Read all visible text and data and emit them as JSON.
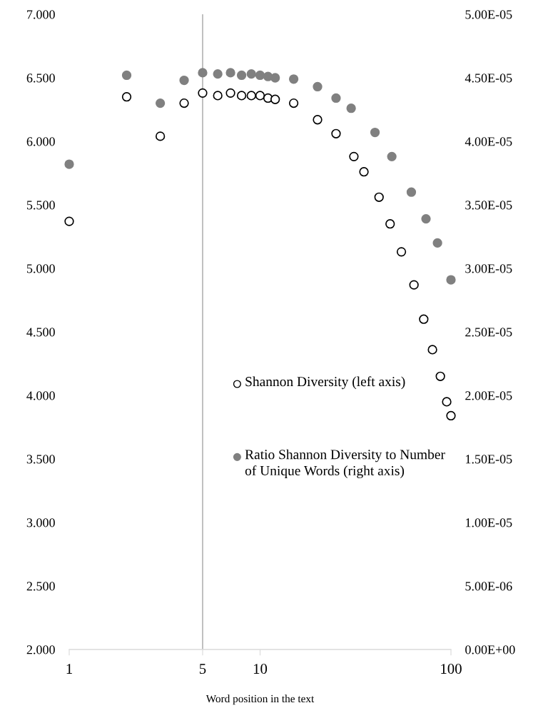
{
  "chart_data": {
    "type": "scatter",
    "xlabel": "Word position in the text",
    "log": "x",
    "grid": false,
    "legend": "bottom right",
    "marker": "circle",
    "xlim": [
      1,
      100
    ],
    "xticks": [
      1,
      5,
      10,
      100
    ],
    "ylim": [
      2.0,
      7.0
    ],
    "yticks": [
      {
        "value": 2.0,
        "label": "2.000"
      },
      {
        "value": 2.5,
        "label": "2.500"
      },
      {
        "value": 3.0,
        "label": "3.000"
      },
      {
        "value": 3.5,
        "label": "3.500"
      },
      {
        "value": 4.0,
        "label": "4.000"
      },
      {
        "value": 4.5,
        "label": "4.500"
      },
      {
        "value": 5.0,
        "label": "5.000"
      },
      {
        "value": 5.5,
        "label": "5.500"
      },
      {
        "value": 6.0,
        "label": "6.000"
      },
      {
        "value": 6.5,
        "label": "6.500"
      },
      {
        "value": 7.0,
        "label": "7.000"
      }
    ],
    "y2lim": [
      0,
      5e-05
    ],
    "y2ticks": [
      {
        "value": 0,
        "label": "0.00E+00"
      },
      {
        "value": 5e-06,
        "label": "5.00E-06"
      },
      {
        "value": 1e-05,
        "label": "1.00E-05"
      },
      {
        "value": 1.5e-05,
        "label": "1.50E-05"
      },
      {
        "value": 2e-05,
        "label": "2.00E-05"
      },
      {
        "value": 2.5e-05,
        "label": "2.50E-05"
      },
      {
        "value": 3e-05,
        "label": "3.00E-05"
      },
      {
        "value": 3.5e-05,
        "label": "3.50E-05"
      },
      {
        "value": 4e-05,
        "label": "4.00E-05"
      },
      {
        "value": 4.5e-05,
        "label": "4.50E-05"
      },
      {
        "value": 5e-05,
        "label": "5.00E-05"
      }
    ],
    "ref_lines": [
      {
        "axis": "x",
        "value": 5,
        "color": "#a6a6a6"
      }
    ],
    "series": [
      {
        "name": "Shannon Diversity (left axis)",
        "color": "#000000",
        "x": [
          1,
          2,
          3,
          4,
          5,
          6,
          7,
          8,
          9,
          10,
          11,
          12,
          15,
          20,
          25,
          31,
          35,
          42,
          48,
          55,
          64,
          72,
          80,
          88,
          95,
          100
        ],
        "values": [
          5.37,
          6.35,
          6.04,
          6.3,
          6.38,
          6.36,
          6.38,
          6.36,
          6.36,
          6.36,
          6.34,
          6.33,
          6.3,
          6.17,
          6.06,
          5.88,
          5.76,
          5.56,
          5.35,
          5.13,
          4.87,
          4.6,
          4.36,
          4.15,
          3.95,
          3.84
        ]
      },
      {
        "name": "Ratio Shannon Diversity to Number of Unique Words (right axis)",
        "color": "#808080",
        "axis": "y2",
        "x": [
          1,
          2,
          3,
          4,
          5,
          6,
          7,
          8,
          9,
          10,
          11,
          12,
          15,
          20,
          25,
          30,
          40,
          49,
          62,
          74,
          85,
          100
        ],
        "values": [
          3.82e-05,
          4.52e-05,
          4.3e-05,
          4.48e-05,
          4.54e-05,
          4.53e-05,
          4.54e-05,
          4.52e-05,
          4.53e-05,
          4.52e-05,
          4.51e-05,
          4.5e-05,
          4.49e-05,
          4.43e-05,
          4.34e-05,
          4.26e-05,
          4.07e-05,
          3.88e-05,
          3.6e-05,
          3.39e-05,
          3.2e-05,
          2.91e-05
        ]
      }
    ]
  }
}
